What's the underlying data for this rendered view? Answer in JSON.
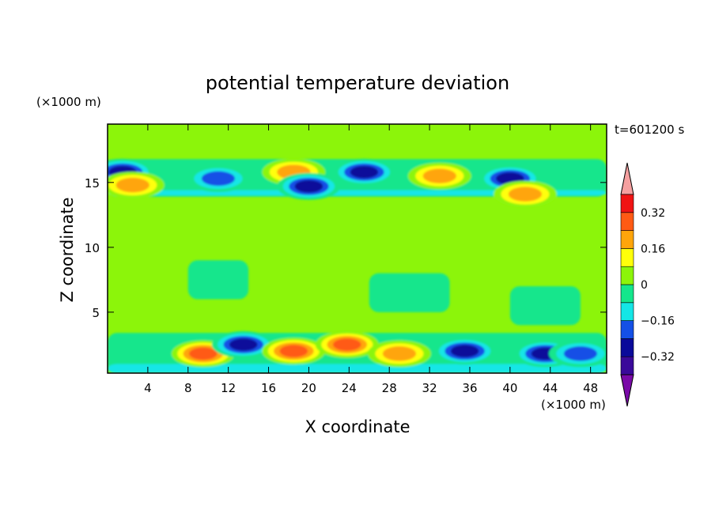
{
  "chart_data": {
    "type": "heatmap",
    "title": "potential temperature deviation",
    "xlabel": "X coordinate",
    "ylabel": "Z coordinate",
    "x_unit_label": "(×1000 m)",
    "y_unit_label": "(×1000 m)",
    "time_label": "t=601200 s",
    "xlim": [
      0,
      49.6
    ],
    "ylim": [
      0.3,
      19.5
    ],
    "x_ticks": [
      4,
      8,
      12,
      16,
      20,
      24,
      28,
      32,
      36,
      40,
      44,
      48
    ],
    "y_ticks": [
      5,
      10,
      15
    ],
    "colorbar": {
      "levels": [
        -0.4,
        -0.32,
        -0.24,
        -0.16,
        -0.08,
        0,
        0.08,
        0.16,
        0.24,
        0.32,
        0.4
      ],
      "tick_labels": [
        "0.32",
        "0.16",
        "0",
        "−0.16",
        "−0.32"
      ],
      "tick_values": [
        0.32,
        0.16,
        0,
        -0.16,
        -0.32
      ],
      "colors": [
        "#7a0aa8",
        "#3a0a9a",
        "#0a0a9a",
        "#1450e6",
        "#14e6e6",
        "#14e68c",
        "#8cf50a",
        "#ffff0a",
        "#ffa50a",
        "#ff5a14",
        "#f01414",
        "#f5a0a0"
      ]
    },
    "features": [
      {
        "x": 1.5,
        "z": 15.8,
        "value": -0.35
      },
      {
        "x": 2.5,
        "z": 14.8,
        "value": 0.22
      },
      {
        "x": 11.0,
        "z": 15.3,
        "value": -0.22
      },
      {
        "x": 18.5,
        "z": 15.8,
        "value": 0.25
      },
      {
        "x": 20.0,
        "z": 14.7,
        "value": -0.3
      },
      {
        "x": 25.5,
        "z": 15.8,
        "value": -0.3
      },
      {
        "x": 33.0,
        "z": 15.5,
        "value": 0.26
      },
      {
        "x": 40.0,
        "z": 15.3,
        "value": -0.28
      },
      {
        "x": 41.5,
        "z": 14.1,
        "value": 0.2
      },
      {
        "x": 9.5,
        "z": 1.8,
        "value": 0.3
      },
      {
        "x": 13.5,
        "z": 2.5,
        "value": -0.32
      },
      {
        "x": 18.5,
        "z": 2.0,
        "value": 0.3
      },
      {
        "x": 23.8,
        "z": 2.5,
        "value": 0.35
      },
      {
        "x": 29.0,
        "z": 1.8,
        "value": 0.2
      },
      {
        "x": 35.5,
        "z": 2.0,
        "value": -0.3
      },
      {
        "x": 43.5,
        "z": 1.8,
        "value": -0.3
      },
      {
        "x": 47.0,
        "z": 1.8,
        "value": -0.25
      }
    ]
  }
}
